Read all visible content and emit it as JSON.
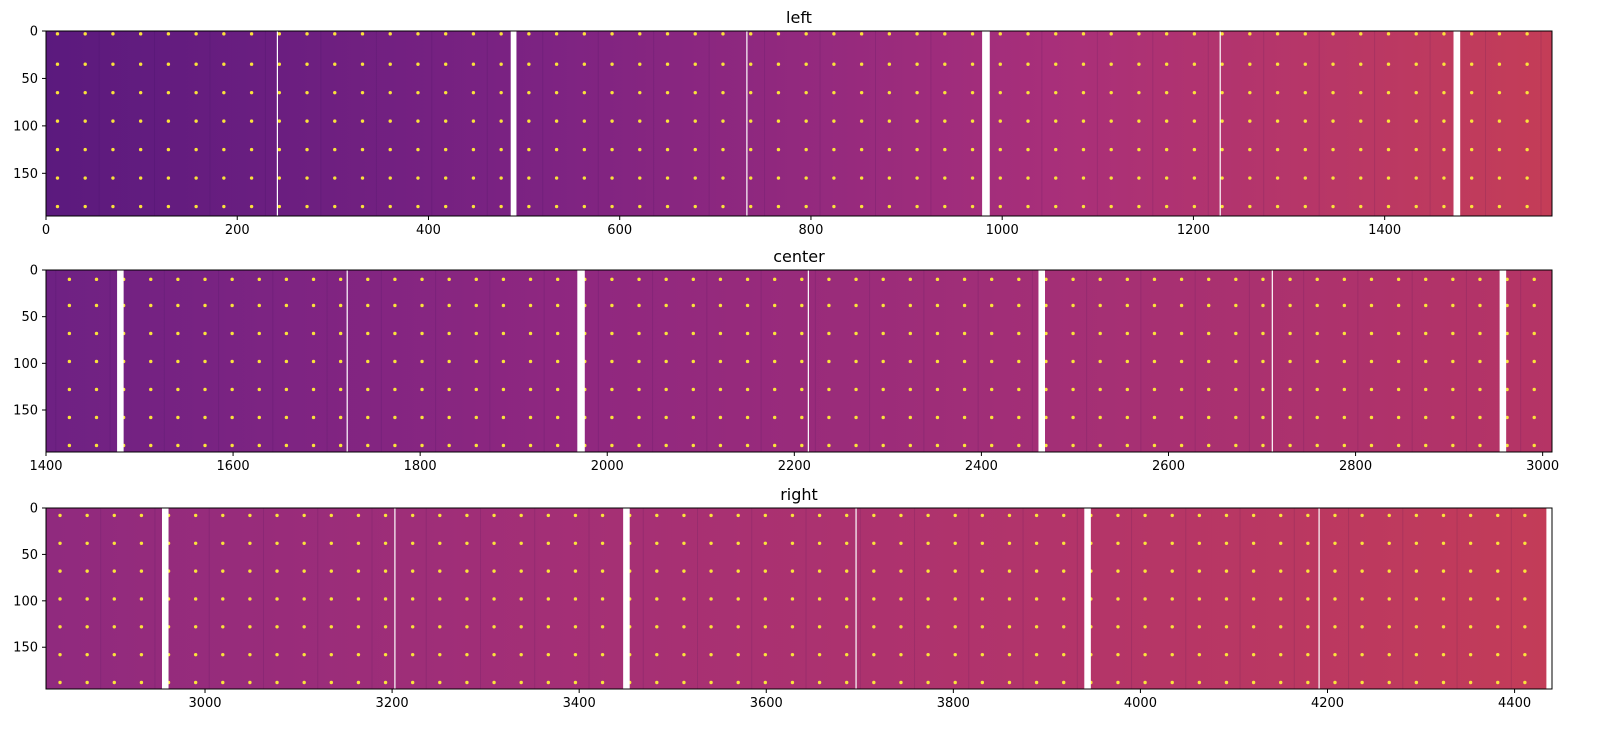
{
  "chart_data": [
    {
      "type": "heatmap",
      "title": "left",
      "xlim": [
        0,
        1575
      ],
      "ylim": [
        195,
        0
      ],
      "xticks": [
        0,
        200,
        400,
        600,
        800,
        1000,
        1200,
        1400
      ],
      "yticks": [
        0,
        50,
        100,
        150
      ],
      "grid": false,
      "colormap": "plasma",
      "gradient": [
        "#5b1a7e",
        "#7d2382",
        "#a82f7a",
        "#c43d57"
      ],
      "spot_x_first": 12,
      "spot_y": [
        3,
        35,
        65,
        95,
        125,
        155,
        185
      ],
      "spot_spacing_x": 29,
      "gap_x": [
        486,
        492,
        979,
        987,
        1472,
        1479
      ],
      "thin_lines_x": [
        242,
        733,
        1228
      ]
    },
    {
      "type": "heatmap",
      "title": "center",
      "xlim": [
        1400,
        3010
      ],
      "ylim": [
        195,
        0
      ],
      "xticks": [
        1400,
        1600,
        1800,
        2000,
        2200,
        2400,
        2600,
        2800,
        3000
      ],
      "yticks": [
        0,
        50,
        100,
        150
      ],
      "grid": false,
      "colormap": "plasma",
      "gradient": [
        "#6e2183",
        "#8e2780",
        "#a32f76",
        "#b53465"
      ],
      "spot_x_first": 1425,
      "spot_y": [
        10,
        38,
        68,
        98,
        128,
        158,
        188
      ],
      "spot_spacing_x": 29,
      "gap_x": [
        1476,
        1483,
        1968,
        1976,
        2461,
        2468,
        2954,
        2961
      ],
      "thin_lines_x": [
        1722,
        2215,
        2711
      ]
    },
    {
      "type": "heatmap",
      "title": "right",
      "xlim": [
        2830,
        4440
      ],
      "ylim": [
        195,
        0
      ],
      "xticks": [
        3000,
        3200,
        3400,
        3600,
        3800,
        4000,
        4200,
        4400
      ],
      "yticks": [
        0,
        50,
        100,
        150
      ],
      "grid": false,
      "colormap": "plasma",
      "gradient": [
        "#902a7e",
        "#a32f76",
        "#b2346a",
        "#c33c58"
      ],
      "spot_x_first": 2845,
      "spot_y": [
        8,
        38,
        68,
        98,
        128,
        158,
        188
      ],
      "spot_spacing_x": 29,
      "gap_x": [
        2954,
        2961,
        3447,
        3454,
        3940,
        3947,
        4434,
        4440
      ],
      "thin_lines_x": [
        3203,
        3696,
        4191
      ]
    }
  ]
}
